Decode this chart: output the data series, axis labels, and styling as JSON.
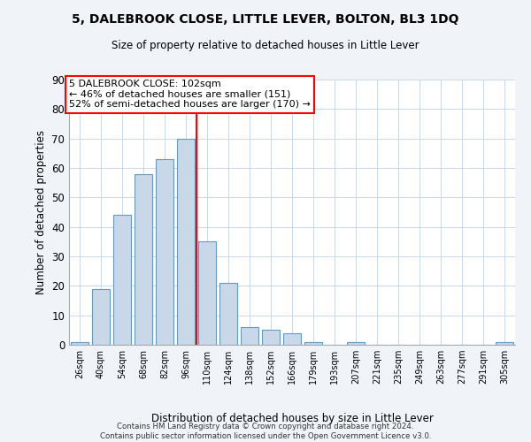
{
  "title": "5, DALEBROOK CLOSE, LITTLE LEVER, BOLTON, BL3 1DQ",
  "subtitle": "Size of property relative to detached houses in Little Lever",
  "xlabel": "Distribution of detached houses by size in Little Lever",
  "ylabel": "Number of detached properties",
  "categories": [
    "26sqm",
    "40sqm",
    "54sqm",
    "68sqm",
    "82sqm",
    "96sqm",
    "110sqm",
    "124sqm",
    "138sqm",
    "152sqm",
    "166sqm",
    "179sqm",
    "193sqm",
    "207sqm",
    "221sqm",
    "235sqm",
    "249sqm",
    "263sqm",
    "277sqm",
    "291sqm",
    "305sqm"
  ],
  "values": [
    1,
    19,
    44,
    58,
    63,
    70,
    35,
    21,
    6,
    5,
    4,
    1,
    0,
    1,
    0,
    0,
    0,
    0,
    0,
    0,
    1
  ],
  "bar_color": "#c8d8e8",
  "bar_edge_color": "#6699bb",
  "vline_x": 5.5,
  "vline_color": "red",
  "annotation_title": "5 DALEBROOK CLOSE: 102sqm",
  "annotation_line1": "← 46% of detached houses are smaller (151)",
  "annotation_line2": "52% of semi-detached houses are larger (170) →",
  "annotation_box_color": "red",
  "ylim": [
    0,
    90
  ],
  "yticks": [
    0,
    10,
    20,
    30,
    40,
    50,
    60,
    70,
    80,
    90
  ],
  "footer1": "Contains HM Land Registry data © Crown copyright and database right 2024.",
  "footer2": "Contains public sector information licensed under the Open Government Licence v3.0.",
  "bg_color": "#f0f4f8",
  "plot_bg_color": "#ffffff"
}
